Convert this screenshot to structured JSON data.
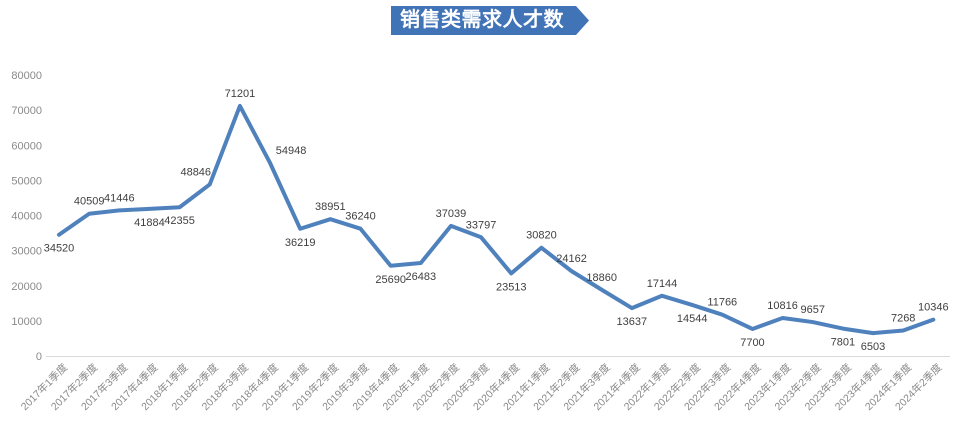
{
  "title": {
    "text": "销售类需求人才数",
    "banner_color": "#4173B7",
    "banner_text_color": "#FFFFFF"
  },
  "chart_data": {
    "type": "line",
    "title": "销售类需求人才数",
    "categories": [
      "2017年1季度",
      "2017年2季度",
      "2017年3季度",
      "2017年4季度",
      "2018年1季度",
      "2018年2季度",
      "2018年3季度",
      "2018年4季度",
      "2019年1季度",
      "2019年2季度",
      "2019年3季度",
      "2019年4季度",
      "2020年1季度",
      "2020年2季度",
      "2020年3季度",
      "2020年4季度",
      "2021年1季度",
      "2021年2季度",
      "2021年3季度",
      "2021年4季度",
      "2022年1季度",
      "2022年2季度",
      "2022年3季度",
      "2022年4季度",
      "2023年1季度",
      "2023年2季度",
      "2023年3季度",
      "2023年4季度",
      "2024年1季度",
      "2024年2季度"
    ],
    "series": [
      {
        "name": "销售类需求人才数",
        "color": "#4F81BD",
        "values": [
          34520,
          40509,
          41446,
          41884,
          42355,
          48846,
          71201,
          54948,
          36219,
          38951,
          36240,
          25690,
          26483,
          37039,
          33797,
          23513,
          30820,
          24162,
          18860,
          13637,
          17144,
          14544,
          11766,
          7700,
          10816,
          9657,
          7801,
          6503,
          7268,
          10346
        ]
      }
    ],
    "ylim": [
      0,
      80000
    ],
    "y_ticks": [
      0,
      10000,
      20000,
      30000,
      40000,
      50000,
      60000,
      70000,
      80000
    ],
    "grid": false,
    "legend_position": "none",
    "data_labels_visible": true,
    "label_placement": [
      "below",
      "above",
      "above",
      "below",
      "below",
      "above_left",
      "above",
      "above_right",
      "below",
      "above",
      "above",
      "below",
      "below",
      "above",
      "above",
      "below",
      "above",
      "above",
      "above",
      "below",
      "above",
      "below",
      "above",
      "below",
      "above",
      "above",
      "below",
      "below",
      "above",
      "above"
    ],
    "colors": {
      "line": "#4F81BD",
      "data_label": "#3F3F3F",
      "axis_tick_label": "#8A8A8A",
      "axis_line": "#D9D9D9"
    }
  }
}
